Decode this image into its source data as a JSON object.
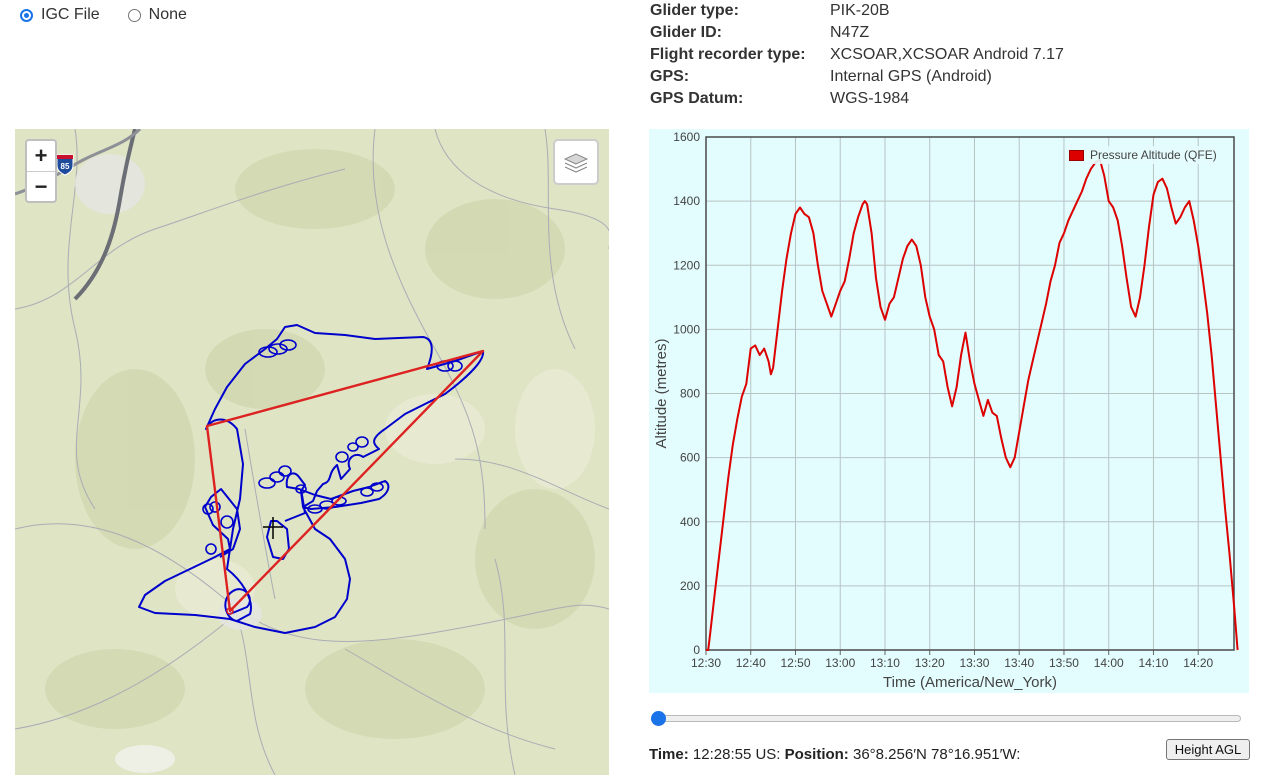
{
  "source": {
    "options": [
      {
        "label": "IGC File",
        "checked": true
      },
      {
        "label": "None",
        "checked": false
      }
    ]
  },
  "flight_info": {
    "rows": [
      {
        "label": "Glider type:",
        "value": "PIK-20B"
      },
      {
        "label": "Glider ID:",
        "value": "N47Z"
      },
      {
        "label": "Flight recorder type:",
        "value": "XCSOAR,XCSOAR Android 7.17"
      },
      {
        "label": "GPS:",
        "value": "Internal GPS (Android)"
      },
      {
        "label": "GPS Datum:",
        "value": "WGS-1984"
      }
    ]
  },
  "map": {
    "zoom_in": "+",
    "zoom_out": "−",
    "highway_shield": "85",
    "layers_icon": "layers-icon",
    "track_color": "#0000cc",
    "task_color": "#dd2222",
    "terrain_color": "#dfe4c4"
  },
  "chart_data": {
    "type": "line",
    "xlabel": "Time (America/New_York)",
    "ylabel": "Altitude (metres)",
    "ylim": [
      0,
      1600
    ],
    "yticks": [
      0,
      200,
      400,
      600,
      800,
      1000,
      1200,
      1400,
      1600
    ],
    "xticks": [
      "12:30",
      "12:40",
      "12:50",
      "13:00",
      "13:10",
      "13:20",
      "13:30",
      "13:40",
      "13:50",
      "14:00",
      "14:10",
      "14:20"
    ],
    "x_unit": "minutes after 12:30",
    "xlim": [
      0,
      118
    ],
    "grid": true,
    "legend_position": "top-right",
    "series": [
      {
        "name": "Pressure Altitude (QFE)",
        "color": "#dd0000",
        "points": [
          [
            0,
            0
          ],
          [
            0.5,
            0
          ],
          [
            1,
            60
          ],
          [
            2,
            180
          ],
          [
            3,
            300
          ],
          [
            4,
            420
          ],
          [
            5,
            540
          ],
          [
            6,
            640
          ],
          [
            7,
            720
          ],
          [
            8,
            790
          ],
          [
            9,
            830
          ],
          [
            10,
            940
          ],
          [
            11,
            950
          ],
          [
            12,
            920
          ],
          [
            13,
            940
          ],
          [
            14,
            900
          ],
          [
            14.5,
            860
          ],
          [
            15,
            880
          ],
          [
            16,
            1000
          ],
          [
            17,
            1120
          ],
          [
            18,
            1220
          ],
          [
            19,
            1300
          ],
          [
            20,
            1360
          ],
          [
            21,
            1380
          ],
          [
            22,
            1360
          ],
          [
            23,
            1350
          ],
          [
            24,
            1300
          ],
          [
            25,
            1200
          ],
          [
            26,
            1120
          ],
          [
            27,
            1080
          ],
          [
            28,
            1040
          ],
          [
            29,
            1080
          ],
          [
            30,
            1120
          ],
          [
            31,
            1150
          ],
          [
            32,
            1220
          ],
          [
            33,
            1300
          ],
          [
            34,
            1350
          ],
          [
            35,
            1390
          ],
          [
            35.5,
            1400
          ],
          [
            36,
            1390
          ],
          [
            37,
            1300
          ],
          [
            38,
            1160
          ],
          [
            39,
            1070
          ],
          [
            40,
            1030
          ],
          [
            41,
            1080
          ],
          [
            42,
            1100
          ],
          [
            43,
            1160
          ],
          [
            44,
            1220
          ],
          [
            45,
            1260
          ],
          [
            46,
            1280
          ],
          [
            47,
            1260
          ],
          [
            48,
            1200
          ],
          [
            49,
            1100
          ],
          [
            50,
            1040
          ],
          [
            51,
            1000
          ],
          [
            52,
            920
          ],
          [
            53,
            900
          ],
          [
            54,
            820
          ],
          [
            55,
            760
          ],
          [
            56,
            820
          ],
          [
            57,
            920
          ],
          [
            58,
            990
          ],
          [
            59,
            900
          ],
          [
            60,
            830
          ],
          [
            61,
            780
          ],
          [
            62,
            730
          ],
          [
            63,
            780
          ],
          [
            64,
            740
          ],
          [
            65,
            730
          ],
          [
            66,
            660
          ],
          [
            67,
            600
          ],
          [
            68,
            570
          ],
          [
            69,
            600
          ],
          [
            70,
            680
          ],
          [
            71,
            760
          ],
          [
            72,
            840
          ],
          [
            73,
            900
          ],
          [
            74,
            960
          ],
          [
            75,
            1020
          ],
          [
            76,
            1080
          ],
          [
            77,
            1150
          ],
          [
            78,
            1200
          ],
          [
            79,
            1270
          ],
          [
            80,
            1300
          ],
          [
            81,
            1340
          ],
          [
            82,
            1370
          ],
          [
            83,
            1400
          ],
          [
            84,
            1430
          ],
          [
            85,
            1470
          ],
          [
            86,
            1500
          ],
          [
            87,
            1520
          ],
          [
            88,
            1530
          ],
          [
            89,
            1480
          ],
          [
            90,
            1400
          ],
          [
            91,
            1380
          ],
          [
            92,
            1340
          ],
          [
            93,
            1260
          ],
          [
            94,
            1160
          ],
          [
            95,
            1070
          ],
          [
            96,
            1040
          ],
          [
            97,
            1100
          ],
          [
            98,
            1200
          ],
          [
            99,
            1320
          ],
          [
            100,
            1420
          ],
          [
            101,
            1460
          ],
          [
            102,
            1470
          ],
          [
            103,
            1440
          ],
          [
            104,
            1380
          ],
          [
            105,
            1330
          ],
          [
            106,
            1350
          ],
          [
            107,
            1380
          ],
          [
            108,
            1400
          ],
          [
            109,
            1340
          ],
          [
            110,
            1260
          ],
          [
            111,
            1160
          ],
          [
            112,
            1050
          ],
          [
            113,
            920
          ],
          [
            114,
            760
          ],
          [
            115,
            600
          ],
          [
            116,
            440
          ],
          [
            117,
            300
          ],
          [
            118,
            140
          ],
          [
            118.8,
            0
          ]
        ]
      }
    ]
  },
  "slider": {
    "value": 0
  },
  "status": {
    "time_label": "Time:",
    "time_value": "12:28:55 US:",
    "position_label": "Position:",
    "position_value": "36°8.256′N 78°16.951′W:",
    "height_button": "Height AGL"
  }
}
